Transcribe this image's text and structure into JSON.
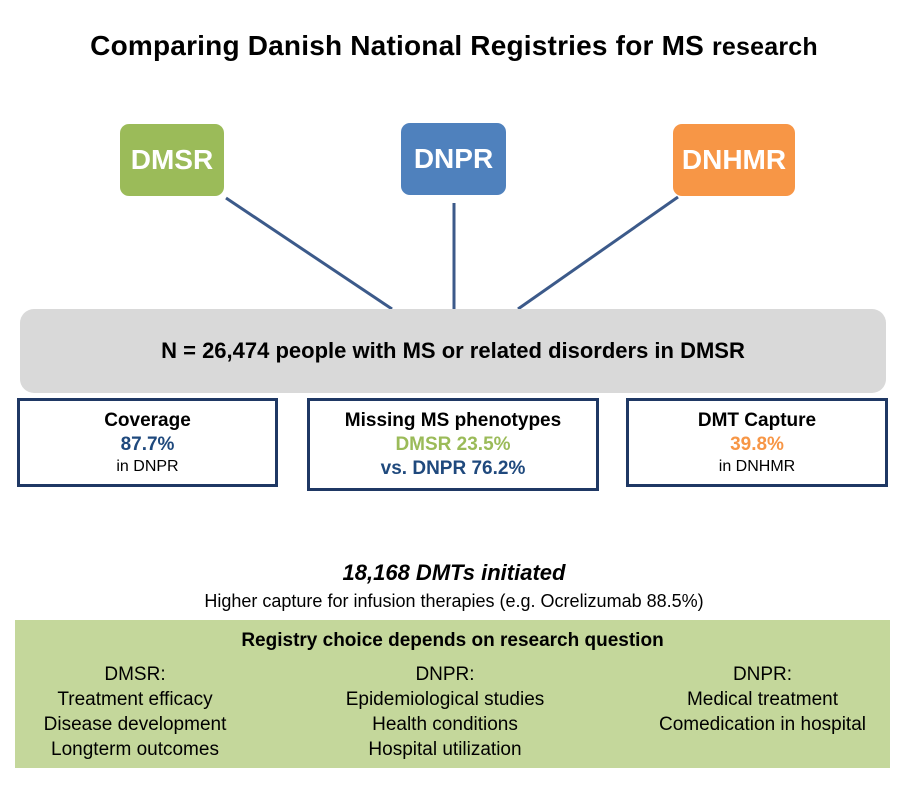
{
  "title": {
    "main": "Comparing Danish National Registries for MS",
    "suffix": "research"
  },
  "registries": [
    "DMSR",
    "DNPR",
    "DNHMR"
  ],
  "banner": "N = 26,474 people with MS or related disorders in DMSR",
  "stats": {
    "coverage": {
      "heading": "Coverage",
      "value": "87.7%",
      "note": "in DNPR"
    },
    "missing": {
      "heading": "Missing MS phenotypes",
      "line1": "DMSR 23.5%",
      "line2": "vs. DNPR 76.2%"
    },
    "dmt": {
      "heading": "DMT Capture",
      "value": "39.8%",
      "note": "in DNHMR"
    }
  },
  "dmts": {
    "title": "18,168 DMTs initiated",
    "subtitle": "Higher capture for infusion therapies (e.g. Ocrelizumab 88.5%)"
  },
  "choice": {
    "heading": "Registry choice depends on research question",
    "columns": [
      {
        "label": "DMSR:",
        "items": [
          "Treatment efficacy",
          "Disease development",
          "Longterm outcomes"
        ]
      },
      {
        "label": "DNPR:",
        "items": [
          "Epidemiological studies",
          "Health conditions",
          "Hospital utilization"
        ]
      },
      {
        "label": "DNPR:",
        "items": [
          "Medical treatment",
          "Comedication in hospital"
        ]
      }
    ]
  },
  "colors": {
    "dmsr": "#9bbb59",
    "dnpr": "#4f81bd",
    "dnhmr": "#f79646",
    "line": "#3c5a8a",
    "panel": "#c4d79b"
  }
}
